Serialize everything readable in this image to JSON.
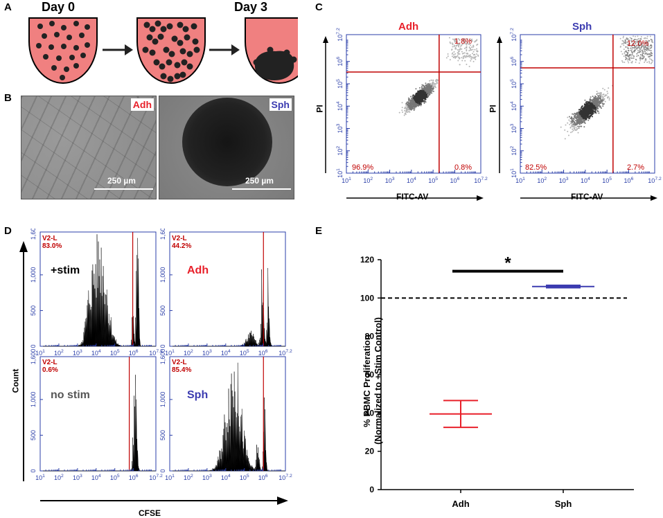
{
  "panels": {
    "A": "A",
    "B": "B",
    "C": "C",
    "D": "D",
    "E": "E"
  },
  "colors": {
    "adh": "#e8202a",
    "sph": "#3b3bb0",
    "flow_axis": "#2a3ea8",
    "gate": "#c00000",
    "well_fill": "#f08080"
  },
  "panel_a": {
    "day0": "Day 0",
    "day3": "Day 3",
    "icons": [
      "well-with-scattered-cells",
      "arrow-right-icon",
      "well-with-clustered-cells",
      "arrow-right-icon",
      "well-with-spheroid"
    ]
  },
  "panel_b": {
    "adh_label": "Adh",
    "sph_label": "Sph",
    "adh_scale": "250 µm",
    "sph_scale": "250 µm"
  },
  "panel_c": {
    "adh": {
      "title": "Adh",
      "ul": "96.9%",
      "ur_top": "1.8%",
      "lr": "0.8%"
    },
    "sph": {
      "title": "Sph",
      "ul": "82.5%",
      "ur_top": "12.0%",
      "lr": "2.7%"
    },
    "xlabel": "FITC-AV",
    "ylabel": "PI",
    "ticks": [
      "10",
      "10",
      "10",
      "10",
      "10",
      "10",
      "10"
    ],
    "tick_exps": [
      "1",
      "2",
      "3",
      "4",
      "5",
      "6",
      "7.2"
    ]
  },
  "panel_d": {
    "xlabel": "CFSE",
    "ylabel": "Count",
    "yticks": [
      "0",
      "500",
      "1,000",
      "1,600"
    ],
    "xticks_base": "10",
    "xtick_exps": [
      "1",
      "2",
      "3",
      "4",
      "5",
      "6",
      "7.2"
    ],
    "plots": [
      {
        "gate": "V2-L",
        "pct": "83.0%",
        "label": "+stim"
      },
      {
        "gate": "V2-L",
        "pct": "44.2%",
        "label": "Adh"
      },
      {
        "gate": "V2-L",
        "pct": "0.6%",
        "label": "no stim"
      },
      {
        "gate": "V2-L",
        "pct": "85.4%",
        "label": "Sph"
      }
    ]
  },
  "chart_data": {
    "type": "scatter",
    "title": "",
    "xlabel": "",
    "ylabel": "% PBMC Proliferation (Normalized to +Stim Control)",
    "ylabel_line1": "% PBMC Proliferation",
    "ylabel_line2": "(Normalized to +Stim Control)",
    "categories": [
      "Adh",
      "Sph"
    ],
    "series": [
      {
        "name": "Adh",
        "mean": 39.5,
        "upper": 46.5,
        "lower": 32.5,
        "color": "#e8202a"
      },
      {
        "name": "Sph",
        "mean": 106,
        "upper": 107,
        "lower": 105,
        "color": "#3b3bb0"
      }
    ],
    "reference_line": 100,
    "significance": "*",
    "ylim": [
      0,
      120
    ],
    "yticks": [
      "0",
      "20",
      "40",
      "60",
      "80",
      "100",
      "120"
    ]
  }
}
